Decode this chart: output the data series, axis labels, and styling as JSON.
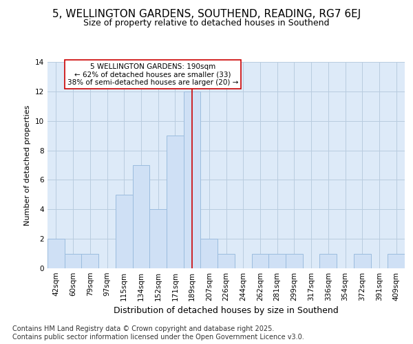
{
  "title": "5, WELLINGTON GARDENS, SOUTHEND, READING, RG7 6EJ",
  "subtitle": "Size of property relative to detached houses in Southend",
  "xlabel": "Distribution of detached houses by size in Southend",
  "ylabel": "Number of detached properties",
  "footer": "Contains HM Land Registry data © Crown copyright and database right 2025.\nContains public sector information licensed under the Open Government Licence v3.0.",
  "categories": [
    "42sqm",
    "60sqm",
    "79sqm",
    "97sqm",
    "115sqm",
    "134sqm",
    "152sqm",
    "171sqm",
    "189sqm",
    "207sqm",
    "226sqm",
    "244sqm",
    "262sqm",
    "281sqm",
    "299sqm",
    "317sqm",
    "336sqm",
    "354sqm",
    "372sqm",
    "391sqm",
    "409sqm"
  ],
  "values": [
    2,
    1,
    1,
    0,
    5,
    7,
    4,
    9,
    12,
    2,
    1,
    0,
    1,
    1,
    1,
    0,
    1,
    0,
    1,
    0,
    1
  ],
  "bar_color": "#cfe0f5",
  "bar_edge_color": "#9bbcde",
  "highlight_index": 8,
  "highlight_line_color": "#cc0000",
  "annotation_text": "5 WELLINGTON GARDENS: 190sqm\n← 62% of detached houses are smaller (33)\n38% of semi-detached houses are larger (20) →",
  "annotation_box_color": "#ffffff",
  "annotation_box_edge": "#cc0000",
  "ylim": [
    0,
    14
  ],
  "yticks": [
    0,
    2,
    4,
    6,
    8,
    10,
    12,
    14
  ],
  "ax_facecolor": "#ddeaf8",
  "background_color": "#ffffff",
  "grid_color": "#b8ccdf",
  "title_fontsize": 11,
  "subtitle_fontsize": 9,
  "xlabel_fontsize": 9,
  "ylabel_fontsize": 8,
  "tick_fontsize": 7.5,
  "footer_fontsize": 7,
  "annotation_fontsize": 7.5
}
